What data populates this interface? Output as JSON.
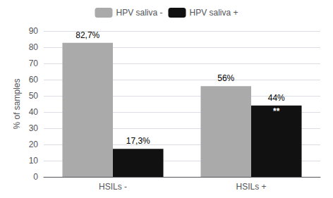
{
  "chart_data": {
    "type": "bar",
    "categories": [
      "HSILs -",
      "HSILs +"
    ],
    "series": [
      {
        "name": "HPV saliva -",
        "color": "#aaaaaa",
        "values": [
          82.7,
          56.0
        ],
        "value_labels": [
          "82,7%",
          "56%"
        ]
      },
      {
        "name": "HPV saliva +",
        "color": "#111111",
        "values": [
          17.3,
          44.0
        ],
        "value_labels": [
          "17,3%",
          "44%"
        ]
      }
    ],
    "ylabel": "% of samples",
    "ylim": [
      0,
      90
    ],
    "yticks": [
      0,
      10,
      20,
      30,
      40,
      50,
      60,
      70,
      80,
      90
    ],
    "grid": true,
    "legend": "top",
    "data_labels": true,
    "annotations": [
      {
        "text": "**",
        "series": "HPV saliva +",
        "category": "HSILs +"
      }
    ]
  }
}
